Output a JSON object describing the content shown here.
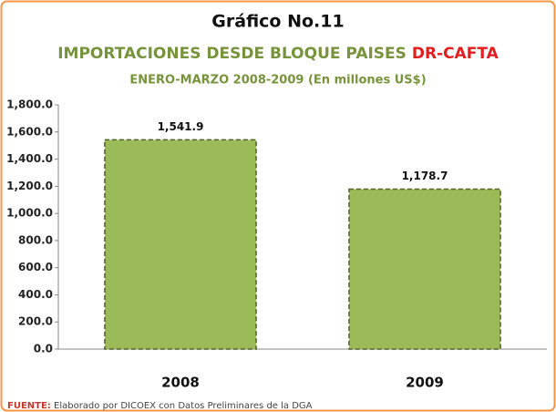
{
  "chart_data": {
    "type": "bar",
    "title": "Gráfico No.11",
    "subtitle": "IMPORTACIONES DESDE BLOQUE PAISES",
    "subtitle_highlight": "DR-CAFTA",
    "period": "ENERO-MARZO 2008-2009 (En millones US$)",
    "categories": [
      "2008",
      "2009"
    ],
    "values": [
      1541.9,
      1178.7
    ],
    "value_labels": [
      "1,541.9",
      "1,178.7"
    ],
    "color": "#9bbb59",
    "ylim": [
      0,
      1800
    ],
    "yticks": [
      {
        "value": 0,
        "label": "0.0"
      },
      {
        "value": 200,
        "label": "200.0"
      },
      {
        "value": 400,
        "label": "400.0"
      },
      {
        "value": 600,
        "label": "600.0"
      },
      {
        "value": 800,
        "label": "800.0"
      },
      {
        "value": 1000,
        "label": "1,000.0"
      },
      {
        "value": 1200,
        "label": "1,200.0"
      },
      {
        "value": 1400,
        "label": "1,400.0"
      },
      {
        "value": 1600,
        "label": "1,600.0"
      },
      {
        "value": 1800,
        "label": "1,800.0"
      }
    ],
    "grid": false,
    "source_label": "FUENTE:",
    "source": "Elaborado por DICOEX con Datos Preliminares de la DGA"
  }
}
